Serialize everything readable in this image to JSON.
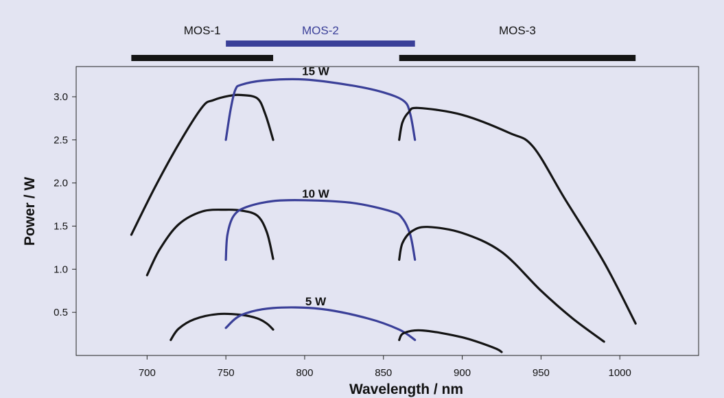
{
  "chart_data": {
    "type": "line",
    "xlabel": "Wavelength / nm",
    "ylabel": "Power / W",
    "xlim": [
      655,
      1050
    ],
    "ylim": [
      0,
      3.35
    ],
    "x_ticks": [
      700,
      750,
      800,
      850,
      900,
      950,
      1000
    ],
    "y_ticks": [
      0.5,
      1.0,
      1.5,
      2.0,
      2.5,
      3.0
    ],
    "x_tick_labels": [
      "700",
      "750",
      "800",
      "850",
      "900",
      "950",
      "1000"
    ],
    "y_tick_labels": [
      "0.5",
      "1.0",
      "1.5",
      "2.0",
      "2.5",
      "3.0"
    ],
    "grid": false,
    "colors": {
      "MOS-1": "#141414",
      "MOS-2": "#3a3f98",
      "MOS-3": "#141414",
      "background": "#e3e4f2",
      "plot_bg": "#e3e4f2"
    },
    "ranges": [
      {
        "label": "MOS-1",
        "x_start": 690,
        "x_end": 780,
        "color": "#141414"
      },
      {
        "label": "MOS-2",
        "x_start": 750,
        "x_end": 870,
        "color": "#3a3f98"
      },
      {
        "label": "MOS-3",
        "x_start": 860,
        "x_end": 1010,
        "color": "#141414"
      }
    ],
    "power_labels": [
      {
        "text": "15 W",
        "x": 807,
        "y": 3.25
      },
      {
        "text": "10 W",
        "x": 807,
        "y": 1.83
      },
      {
        "text": "5 W",
        "x": 807,
        "y": 0.58
      }
    ],
    "series": [
      {
        "source": "MOS-1",
        "power": "15 W",
        "x": [
          690,
          705,
          720,
          735,
          742,
          752,
          760,
          770,
          775,
          780
        ],
        "y": [
          1.4,
          1.95,
          2.45,
          2.88,
          2.96,
          3.01,
          3.02,
          2.98,
          2.8,
          2.5
        ]
      },
      {
        "source": "MOS-2",
        "power": "15 W",
        "x": [
          750,
          753,
          756,
          760,
          775,
          800,
          830,
          850,
          863,
          867,
          870
        ],
        "y": [
          2.5,
          2.85,
          3.08,
          3.14,
          3.19,
          3.2,
          3.13,
          3.05,
          2.95,
          2.8,
          2.5
        ]
      },
      {
        "source": "MOS-3",
        "power": "15 W",
        "x": [
          860,
          862,
          866,
          872,
          900,
          930,
          945,
          965,
          990,
          1010
        ],
        "y": [
          2.5,
          2.7,
          2.82,
          2.87,
          2.79,
          2.58,
          2.42,
          1.82,
          1.08,
          0.37
        ]
      },
      {
        "source": "MOS-1",
        "power": "10 W",
        "x": [
          700,
          708,
          720,
          735,
          750,
          760,
          770,
          776,
          780
        ],
        "y": [
          0.93,
          1.23,
          1.52,
          1.67,
          1.69,
          1.68,
          1.62,
          1.43,
          1.12
        ]
      },
      {
        "source": "MOS-2",
        "power": "10 W",
        "x": [
          750,
          751,
          755,
          763,
          780,
          800,
          830,
          855,
          862,
          867,
          870
        ],
        "y": [
          1.11,
          1.4,
          1.62,
          1.72,
          1.79,
          1.8,
          1.77,
          1.67,
          1.59,
          1.4,
          1.11
        ]
      },
      {
        "source": "MOS-3",
        "power": "10 W",
        "x": [
          860,
          862,
          868,
          878,
          900,
          925,
          950,
          970,
          990
        ],
        "y": [
          1.11,
          1.3,
          1.44,
          1.49,
          1.42,
          1.2,
          0.75,
          0.43,
          0.16
        ]
      },
      {
        "source": "MOS-1",
        "power": "5 W",
        "x": [
          715,
          720,
          730,
          745,
          760,
          770,
          776,
          780
        ],
        "y": [
          0.18,
          0.31,
          0.42,
          0.48,
          0.47,
          0.43,
          0.37,
          0.3
        ]
      },
      {
        "source": "MOS-2",
        "power": "5 W",
        "x": [
          750,
          760,
          780,
          810,
          840,
          860,
          870
        ],
        "y": [
          0.32,
          0.47,
          0.55,
          0.54,
          0.43,
          0.3,
          0.18
        ]
      },
      {
        "source": "MOS-3",
        "power": "5 W",
        "x": [
          860,
          863,
          875,
          900,
          920,
          925
        ],
        "y": [
          0.18,
          0.26,
          0.29,
          0.21,
          0.09,
          0.04
        ]
      }
    ]
  }
}
